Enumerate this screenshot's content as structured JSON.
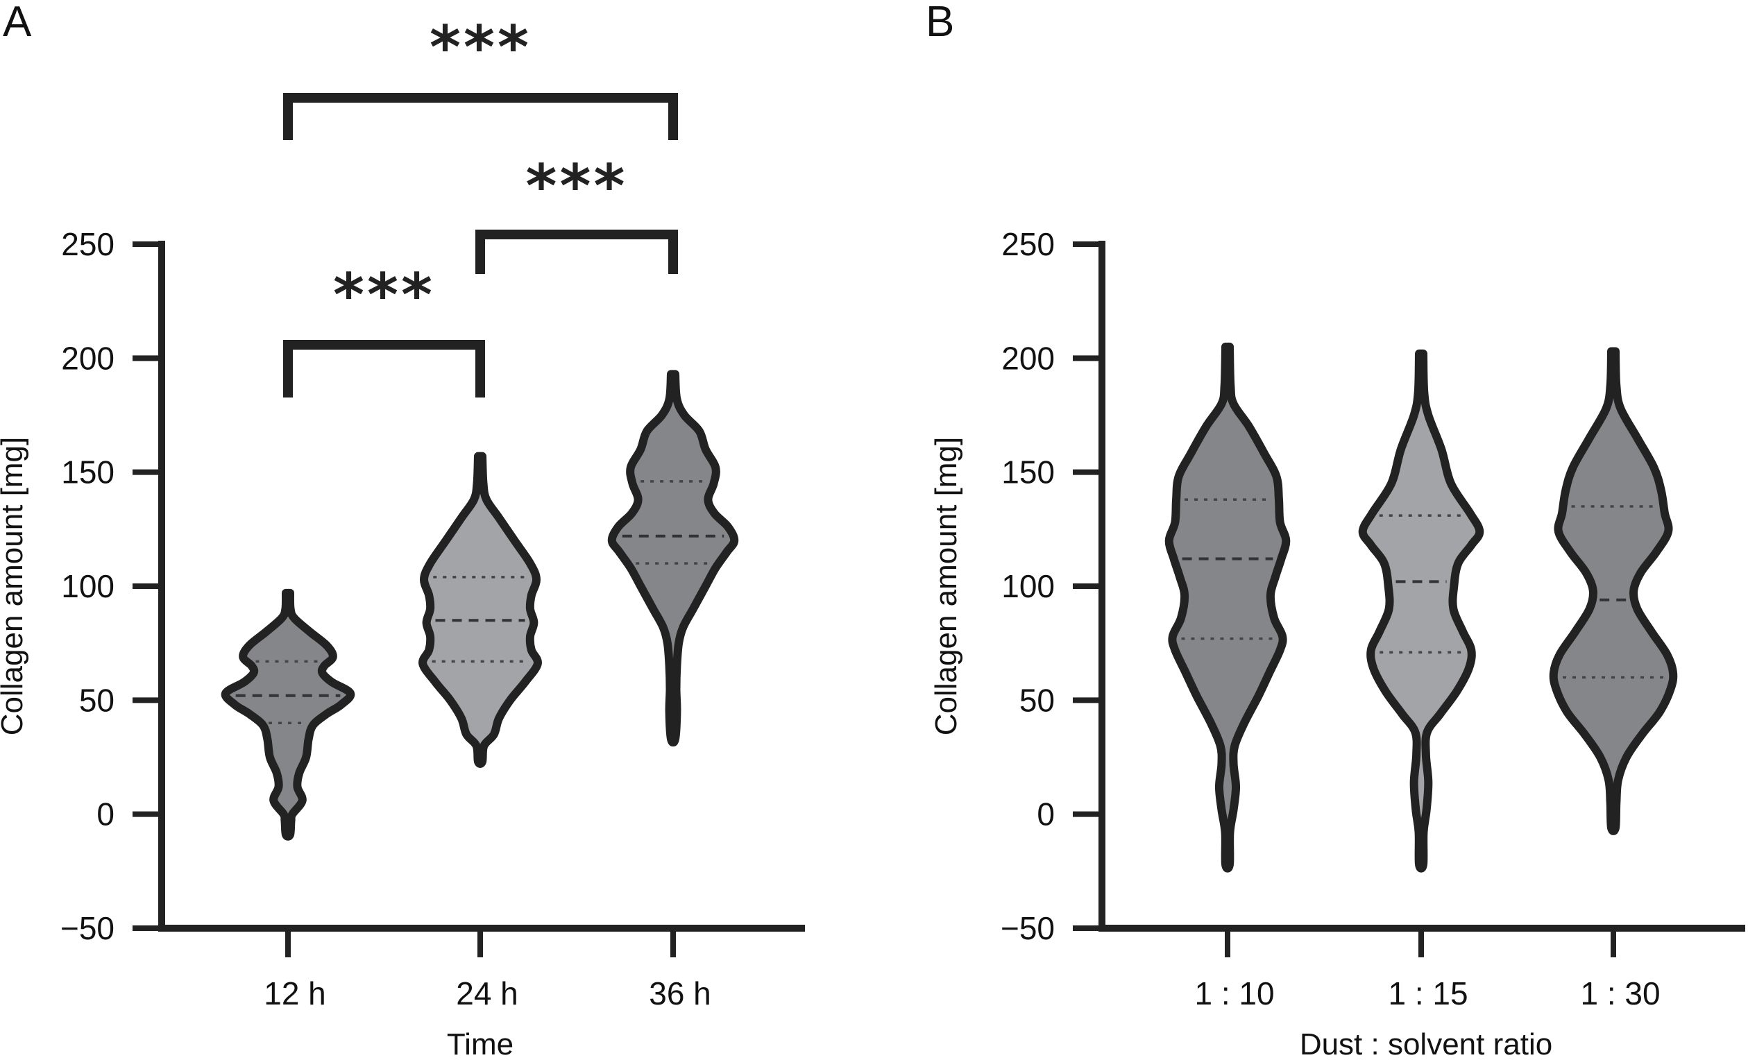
{
  "figure": {
    "panels": [
      "A",
      "B"
    ]
  },
  "chart_data": [
    {
      "type": "violin",
      "panel_label": "A",
      "title": "",
      "xlabel": "Time",
      "ylabel": "Collagen amount [mg]",
      "ylim": [
        -50,
        250
      ],
      "yticks": [
        -50,
        0,
        50,
        100,
        150,
        200,
        250
      ],
      "ytick_labels": [
        "−50",
        "0",
        "50",
        "100",
        "150",
        "200",
        "250"
      ],
      "categories": [
        "12 h",
        "24 h",
        "36 h"
      ],
      "grid": false,
      "series": [
        {
          "name": "12 h",
          "fill": "#84868a",
          "min": -9,
          "max": 97,
          "q1": 40,
          "median": 52,
          "q3": 67,
          "density": [
            [
              -9,
              0.02
            ],
            [
              -3,
              0.05
            ],
            [
              0,
              0.07
            ],
            [
              6,
              0.23
            ],
            [
              12,
              0.15
            ],
            [
              18,
              0.18
            ],
            [
              25,
              0.29
            ],
            [
              33,
              0.33
            ],
            [
              39,
              0.4
            ],
            [
              44,
              0.62
            ],
            [
              48,
              0.85
            ],
            [
              53,
              1.0
            ],
            [
              58,
              0.7
            ],
            [
              62,
              0.55
            ],
            [
              65,
              0.58
            ],
            [
              69,
              0.72
            ],
            [
              74,
              0.62
            ],
            [
              80,
              0.35
            ],
            [
              86,
              0.1
            ],
            [
              90,
              0.04
            ],
            [
              97,
              0.0
            ]
          ]
        },
        {
          "name": "24 h",
          "fill": "#a2a4a8",
          "min": 23,
          "max": 157,
          "q1": 67,
          "median": 85,
          "q3": 104,
          "density": [
            [
              23,
              0.02
            ],
            [
              30,
              0.06
            ],
            [
              35,
              0.22
            ],
            [
              42,
              0.3
            ],
            [
              50,
              0.48
            ],
            [
              58,
              0.72
            ],
            [
              66,
              0.92
            ],
            [
              72,
              0.82
            ],
            [
              78,
              0.8
            ],
            [
              84,
              0.86
            ],
            [
              90,
              0.8
            ],
            [
              96,
              0.82
            ],
            [
              103,
              0.9
            ],
            [
              110,
              0.8
            ],
            [
              120,
              0.55
            ],
            [
              130,
              0.3
            ],
            [
              138,
              0.1
            ],
            [
              145,
              0.05
            ],
            [
              157,
              0.0
            ]
          ]
        },
        {
          "name": "36 h",
          "fill": "#84868a",
          "min": 33,
          "max": 193,
          "q1": 110,
          "median": 122,
          "q3": 146,
          "density": [
            [
              33,
              0.02
            ],
            [
              45,
              0.06
            ],
            [
              55,
              0.05
            ],
            [
              65,
              0.06
            ],
            [
              75,
              0.09
            ],
            [
              82,
              0.16
            ],
            [
              90,
              0.32
            ],
            [
              100,
              0.52
            ],
            [
              108,
              0.68
            ],
            [
              115,
              0.86
            ],
            [
              120,
              0.98
            ],
            [
              126,
              0.88
            ],
            [
              132,
              0.66
            ],
            [
              138,
              0.56
            ],
            [
              145,
              0.65
            ],
            [
              152,
              0.68
            ],
            [
              160,
              0.52
            ],
            [
              168,
              0.42
            ],
            [
              175,
              0.18
            ],
            [
              182,
              0.06
            ],
            [
              193,
              0.0
            ]
          ]
        }
      ],
      "annotations": [
        {
          "from": "12 h",
          "to": "24 h",
          "label": "***"
        },
        {
          "from": "24 h",
          "to": "36 h",
          "label": "***"
        },
        {
          "from": "12 h",
          "to": "36 h",
          "label": "***"
        }
      ]
    },
    {
      "type": "violin",
      "panel_label": "B",
      "title": "",
      "xlabel": "Dust : solvent ratio",
      "ylabel": "Collagen amount [mg]",
      "ylim": [
        -50,
        250
      ],
      "yticks": [
        -50,
        0,
        50,
        100,
        150,
        200,
        250
      ],
      "ytick_labels": [
        "−50",
        "0",
        "50",
        "100",
        "150",
        "200",
        "250"
      ],
      "categories": [
        "1 : 10",
        "1 : 15",
        "1 : 30"
      ],
      "grid": false,
      "series": [
        {
          "name": "1 : 10",
          "fill": "#84868a",
          "min": -22,
          "max": 205,
          "q1": 77,
          "median": 112,
          "q3": 138,
          "density": [
            [
              -22,
              0.02
            ],
            [
              -8,
              0.04
            ],
            [
              2,
              0.1
            ],
            [
              12,
              0.14
            ],
            [
              22,
              0.1
            ],
            [
              30,
              0.12
            ],
            [
              40,
              0.28
            ],
            [
              52,
              0.52
            ],
            [
              62,
              0.7
            ],
            [
              72,
              0.88
            ],
            [
              78,
              0.92
            ],
            [
              86,
              0.78
            ],
            [
              96,
              0.72
            ],
            [
              104,
              0.8
            ],
            [
              112,
              0.9
            ],
            [
              120,
              0.98
            ],
            [
              128,
              0.88
            ],
            [
              138,
              0.86
            ],
            [
              148,
              0.82
            ],
            [
              158,
              0.62
            ],
            [
              170,
              0.36
            ],
            [
              180,
              0.1
            ],
            [
              188,
              0.05
            ],
            [
              205,
              0.0
            ]
          ]
        },
        {
          "name": "1 : 15",
          "fill": "#a2a4a8",
          "min": -22,
          "max": 202,
          "q1": 71,
          "median": 102,
          "q3": 131,
          "density": [
            [
              -22,
              0.02
            ],
            [
              -8,
              0.04
            ],
            [
              2,
              0.09
            ],
            [
              14,
              0.12
            ],
            [
              26,
              0.08
            ],
            [
              36,
              0.1
            ],
            [
              44,
              0.32
            ],
            [
              54,
              0.6
            ],
            [
              64,
              0.8
            ],
            [
              72,
              0.84
            ],
            [
              80,
              0.7
            ],
            [
              90,
              0.54
            ],
            [
              100,
              0.55
            ],
            [
              110,
              0.62
            ],
            [
              118,
              0.84
            ],
            [
              124,
              0.98
            ],
            [
              132,
              0.82
            ],
            [
              145,
              0.5
            ],
            [
              160,
              0.34
            ],
            [
              175,
              0.12
            ],
            [
              185,
              0.05
            ],
            [
              202,
              0.0
            ]
          ]
        },
        {
          "name": "1 : 30",
          "fill": "#84868a",
          "min": -6,
          "max": 203,
          "q1": 60,
          "median": 94,
          "q3": 135,
          "density": [
            [
              -6,
              0.02
            ],
            [
              5,
              0.05
            ],
            [
              15,
              0.08
            ],
            [
              25,
              0.22
            ],
            [
              35,
              0.48
            ],
            [
              45,
              0.78
            ],
            [
              55,
              0.96
            ],
            [
              62,
              1.0
            ],
            [
              70,
              0.9
            ],
            [
              80,
              0.64
            ],
            [
              90,
              0.4
            ],
            [
              98,
              0.34
            ],
            [
              106,
              0.46
            ],
            [
              115,
              0.72
            ],
            [
              124,
              0.92
            ],
            [
              132,
              0.86
            ],
            [
              142,
              0.8
            ],
            [
              152,
              0.68
            ],
            [
              165,
              0.4
            ],
            [
              178,
              0.12
            ],
            [
              188,
              0.05
            ],
            [
              203,
              0.0
            ]
          ]
        }
      ],
      "annotations": []
    }
  ]
}
